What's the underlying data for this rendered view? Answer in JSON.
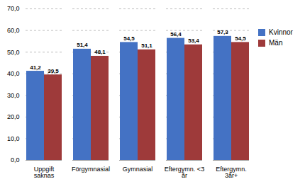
{
  "chart_data": {
    "type": "bar",
    "categories": [
      "Uppgift\nsaknas",
      "Förgymnasial",
      "Gymnasial",
      "Eftergymn. <3\når",
      "Eftergymn.\n3år+"
    ],
    "series": [
      {
        "name": "Kvinnor",
        "color": "#4472C4",
        "values": [
          41.2,
          51.4,
          54.5,
          56.4,
          57.3
        ],
        "value_labels": [
          "41,2",
          "51,4",
          "54,5",
          "56,4",
          "57,3"
        ]
      },
      {
        "name": "Män",
        "color": "#9E3A3A",
        "values": [
          39.5,
          48.1,
          51.1,
          53.4,
          54.5
        ],
        "value_labels": [
          "39,5",
          "48,1",
          "51,1",
          "53,4",
          "54,5"
        ]
      }
    ],
    "ylim": [
      0,
      70
    ],
    "yticks": [
      {
        "value": 0,
        "label": "0,0"
      },
      {
        "value": 10,
        "label": "10,0"
      },
      {
        "value": 20,
        "label": "20,0"
      },
      {
        "value": 30,
        "label": "30,0"
      },
      {
        "value": 40,
        "label": "40,0"
      },
      {
        "value": 50,
        "label": "50,0"
      },
      {
        "value": 60,
        "label": "60,0"
      },
      {
        "value": 70,
        "label": "70,0"
      }
    ],
    "grid": true,
    "legend": "right",
    "data_labels": true
  }
}
